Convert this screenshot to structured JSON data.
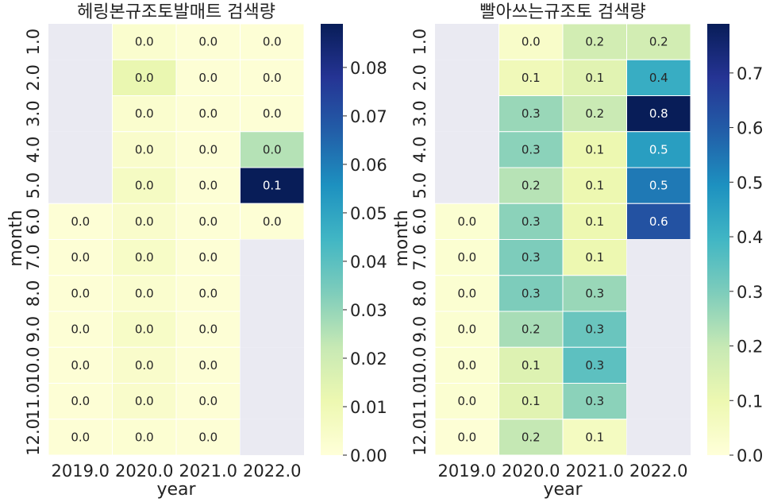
{
  "chart_data": [
    {
      "type": "heatmap",
      "title": "헤링본규조토발매트 검색량",
      "xlabel": "year",
      "ylabel": "month",
      "x": [
        "2019.0",
        "2020.0",
        "2021.0",
        "2022.0"
      ],
      "y": [
        "1.0",
        "2.0",
        "3.0",
        "4.0",
        "5.0",
        "6.0",
        "7.0",
        "8.0",
        "9.0",
        "10.0",
        "11.0",
        "12.0"
      ],
      "values": [
        [
          null,
          0.003,
          0.001,
          0.001
        ],
        [
          null,
          0.012,
          0.001,
          0.001
        ],
        [
          null,
          0.003,
          0.001,
          0.001
        ],
        [
          null,
          0.004,
          0.001,
          0.025
        ],
        [
          null,
          0.006,
          0.001,
          0.089
        ],
        [
          0.001,
          0.004,
          0.001,
          0.001
        ],
        [
          0.001,
          0.005,
          0.001,
          null
        ],
        [
          0.001,
          0.003,
          0.001,
          null
        ],
        [
          0.001,
          0.005,
          0.001,
          null
        ],
        [
          0.001,
          0.004,
          0.001,
          null
        ],
        [
          0.001,
          0.004,
          0.001,
          null
        ],
        [
          0.001,
          0.002,
          0.001,
          null
        ]
      ],
      "colorbar": {
        "min": 0.0,
        "max": 0.089,
        "ticks": [
          "0.00",
          "0.01",
          "0.02",
          "0.03",
          "0.04",
          "0.05",
          "0.06",
          "0.07",
          "0.08"
        ]
      },
      "colormap": "YlGnBu"
    },
    {
      "type": "heatmap",
      "title": "빨아쓰는규조토 검색량",
      "xlabel": "year",
      "ylabel": "month",
      "x": [
        "2019.0",
        "2020.0",
        "2021.0",
        "2022.0"
      ],
      "y": [
        "1.0",
        "2.0",
        "3.0",
        "4.0",
        "5.0",
        "6.0",
        "7.0",
        "8.0",
        "9.0",
        "10.0",
        "11.0",
        "12.0"
      ],
      "values": [
        [
          null,
          0.04,
          0.17,
          0.17
        ],
        [
          null,
          0.08,
          0.13,
          0.42
        ],
        [
          null,
          0.26,
          0.19,
          0.79
        ],
        [
          null,
          0.28,
          0.1,
          0.46
        ],
        [
          null,
          0.22,
          0.1,
          0.54
        ],
        [
          0.02,
          0.28,
          0.1,
          0.62
        ],
        [
          0.02,
          0.3,
          0.1,
          null
        ],
        [
          0.02,
          0.3,
          0.26,
          null
        ],
        [
          0.02,
          0.24,
          0.33,
          null
        ],
        [
          0.02,
          0.14,
          0.35,
          null
        ],
        [
          0.02,
          0.13,
          0.28,
          null
        ],
        [
          0.01,
          0.2,
          0.06,
          null
        ]
      ],
      "colorbar": {
        "min": 0.0,
        "max": 0.79,
        "ticks": [
          "0.0",
          "0.1",
          "0.2",
          "0.3",
          "0.4",
          "0.5",
          "0.6",
          "0.7"
        ]
      },
      "colormap": "YlGnBu"
    }
  ]
}
